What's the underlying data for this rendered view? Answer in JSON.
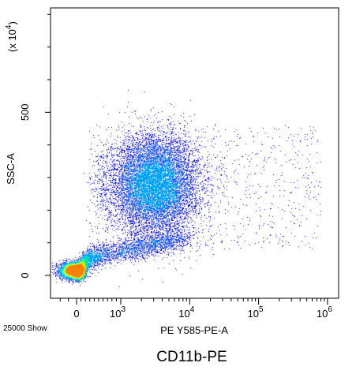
{
  "chart_data": {
    "type": "scatter",
    "style": "density-dot-plot",
    "xlabel": "PE Y585-PE-A",
    "ylabel": "SSC-A",
    "y_exponent_label": "(x 10",
    "y_exponent_sup": "4",
    "y_exponent_close": ")",
    "events_label": "25000 Show",
    "caption": "CD11b-PE",
    "x_scale": "biexponential",
    "xlim": [
      -300,
      1000000
    ],
    "ylim": [
      -70,
      820
    ],
    "x_ticks": [
      {
        "value": 0,
        "label": "0"
      },
      {
        "value": 1000,
        "label": "10",
        "sup": "3"
      },
      {
        "value": 10000,
        "label": "10",
        "sup": "4"
      },
      {
        "value": 100000,
        "label": "10",
        "sup": "5"
      },
      {
        "value": 1000000,
        "label": "10",
        "sup": "6"
      }
    ],
    "y_ticks": [
      {
        "value": 0,
        "label": "0"
      },
      {
        "value": 500,
        "label": "500"
      }
    ],
    "populations": [
      {
        "name": "",
        "x_center": 3000,
        "y_center": 280,
        "count": 11000
      },
      {
        "name": "",
        "x_center": -20,
        "y_center": 15,
        "count": 5500
      },
      {
        "name": "",
        "x_center": 800,
        "y_center": 70,
        "count": 3000
      },
      {
        "name": "",
        "x_center": 60000,
        "y_center": 250,
        "count": 450
      }
    ],
    "density_colors": [
      "#0000ff",
      "#2255ff",
      "#00a0ff",
      "#00e0c0",
      "#80ff40",
      "#ffff00",
      "#ff8000"
    ],
    "grid": false
  }
}
